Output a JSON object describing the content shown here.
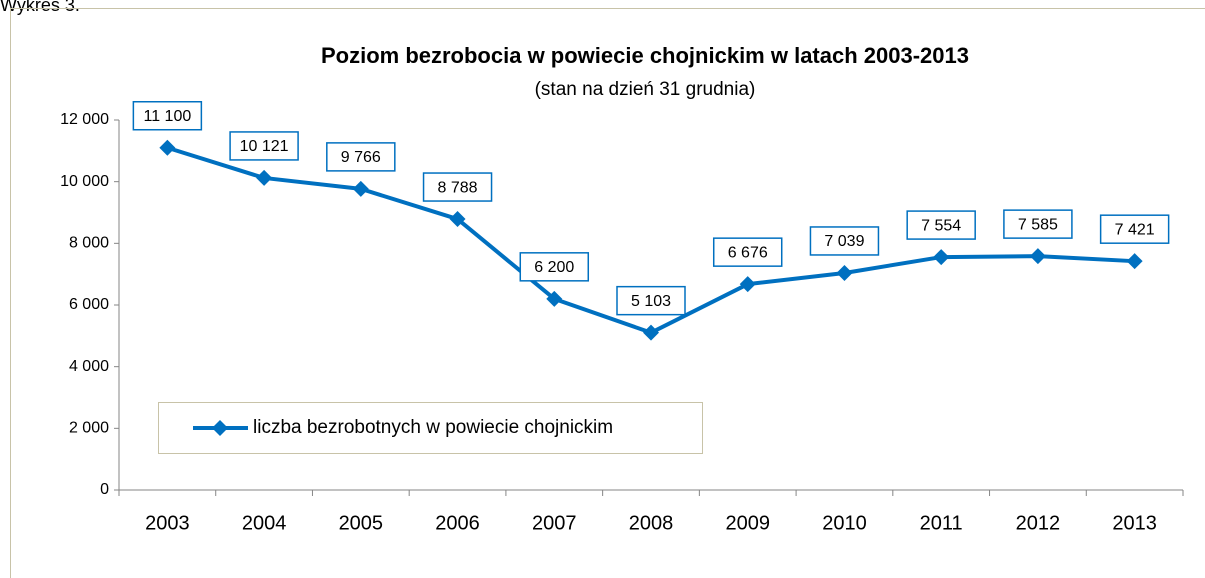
{
  "header": {
    "text": "Wykres 3."
  },
  "chart_data": {
    "type": "line",
    "title": "Poziom bezrobocia w powiecie chojnickim w latach 2003-2013",
    "subtitle": "(stan na dzień 31 grudnia)",
    "categories": [
      "2003",
      "2004",
      "2005",
      "2006",
      "2007",
      "2008",
      "2009",
      "2010",
      "2011",
      "2012",
      "2013"
    ],
    "series": [
      {
        "name": "liczba bezrobotnych w powiecie chojnickim",
        "color": "#0070c0",
        "values": [
          11100,
          10121,
          9766,
          8788,
          6200,
          5103,
          6676,
          7039,
          7554,
          7585,
          7421
        ],
        "value_labels": [
          "11 100",
          "10 121",
          "9 766",
          "8 788",
          "6 200",
          "5 103",
          "6 676",
          "7 039",
          "7 554",
          "7 585",
          "7 421"
        ]
      }
    ],
    "ylim": [
      0,
      12000
    ],
    "yticks": [
      0,
      {
        "value": 2000,
        "label": "2 000"
      },
      {
        "value": 4000,
        "label": "4 000"
      },
      {
        "value": 6000,
        "label": "6 000"
      },
      {
        "value": 8000,
        "label": "8 000"
      },
      {
        "value": 10000,
        "label": "10 000"
      },
      {
        "value": 12000,
        "label": "12 000"
      }
    ],
    "grid": false,
    "legend": "lower left"
  }
}
